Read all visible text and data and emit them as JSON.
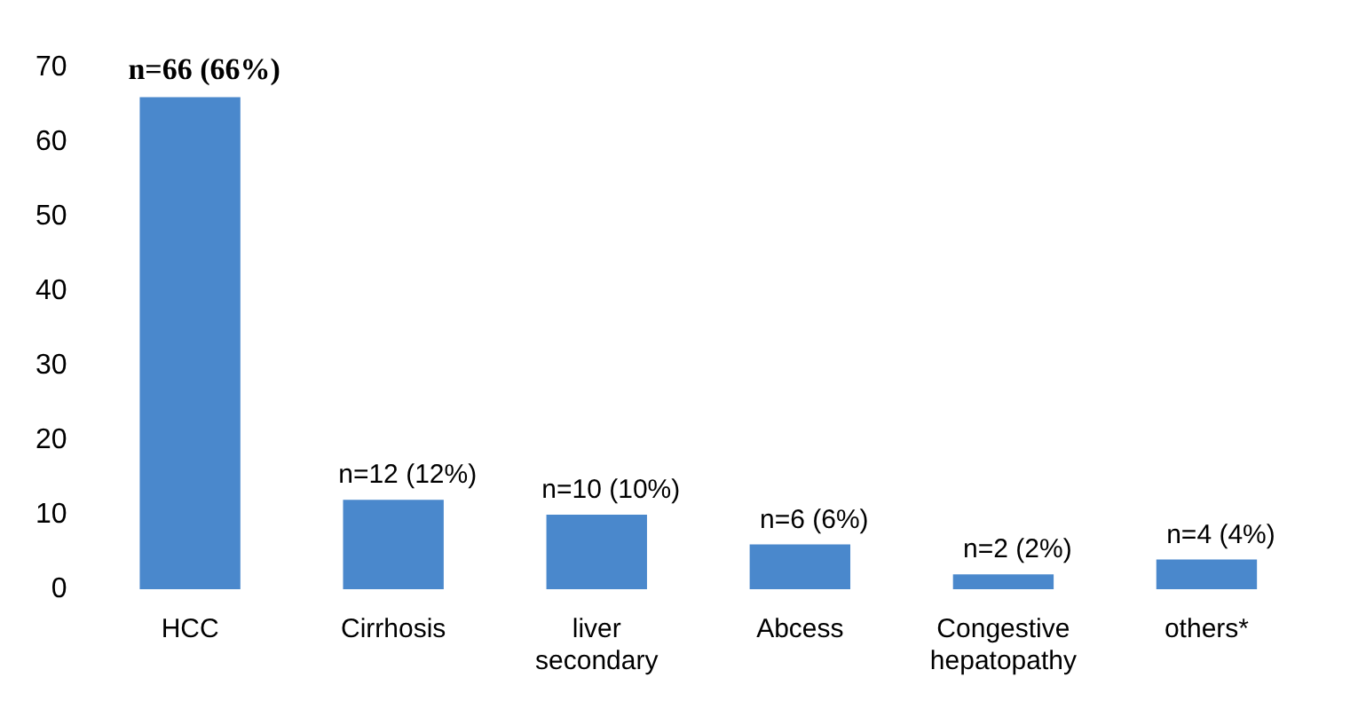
{
  "chart_data": {
    "type": "bar",
    "categories": [
      "HCC",
      "Cirrhosis",
      "liver secondary",
      "Abcess",
      "Congestive hepatopathy",
      "others*"
    ],
    "values": [
      66,
      12,
      10,
      6,
      2,
      4
    ],
    "value_labels": [
      "n=66 (66%)",
      "n=12 (12%)",
      "n=10 (10%)",
      "n=6 (6%)",
      "n=2 (2%)",
      "n=4 (4%)"
    ],
    "color": "#4a88cc",
    "ylim": [
      0,
      70
    ],
    "yticks": [
      0,
      10,
      20,
      30,
      40,
      50,
      60,
      70
    ],
    "grid": false,
    "legend": false
  }
}
